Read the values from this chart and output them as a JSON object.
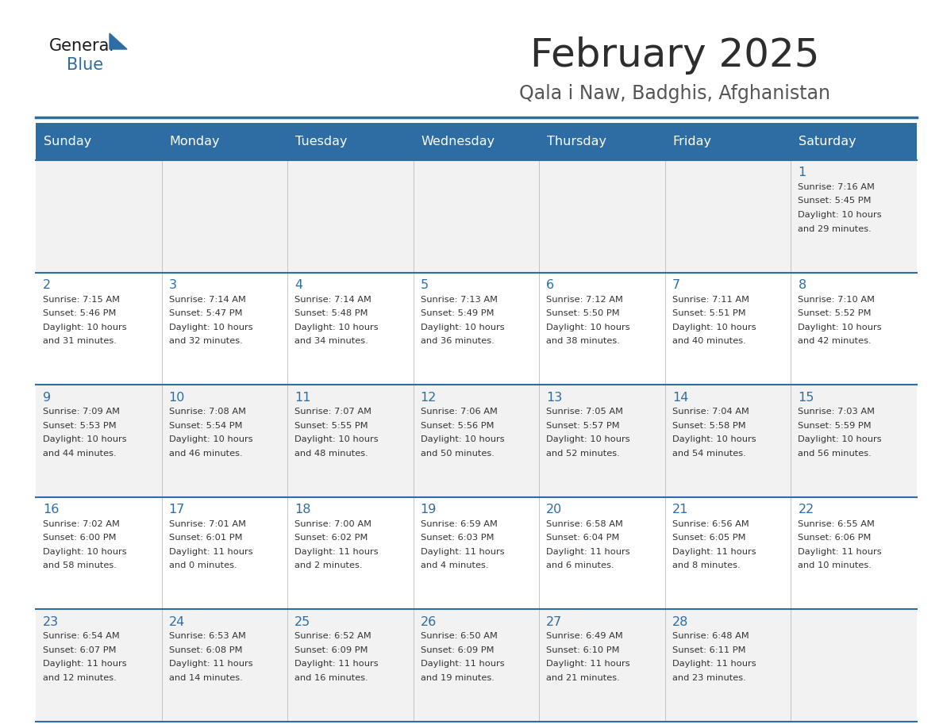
{
  "title": "February 2025",
  "subtitle": "Qala i Naw, Badghis, Afghanistan",
  "header_bg": "#2E6DA4",
  "header_text": "#FFFFFF",
  "row_bg_odd": "#F2F2F2",
  "row_bg_even": "#FFFFFF",
  "cell_border": "#2E6DA4",
  "day_headers": [
    "Sunday",
    "Monday",
    "Tuesday",
    "Wednesday",
    "Thursday",
    "Friday",
    "Saturday"
  ],
  "title_color": "#2d2d2d",
  "subtitle_color": "#555555",
  "day_num_color": "#2E6DA4",
  "info_color": "#333333",
  "logo_general_color": "#1a1a1a",
  "logo_blue_color": "#2E6DA4",
  "calendar": [
    [
      null,
      null,
      null,
      null,
      null,
      null,
      {
        "day": 1,
        "sunrise": "7:16 AM",
        "sunset": "5:45 PM",
        "daylight": "10 hours and 29 minutes."
      }
    ],
    [
      {
        "day": 2,
        "sunrise": "7:15 AM",
        "sunset": "5:46 PM",
        "daylight": "10 hours and 31 minutes."
      },
      {
        "day": 3,
        "sunrise": "7:14 AM",
        "sunset": "5:47 PM",
        "daylight": "10 hours and 32 minutes."
      },
      {
        "day": 4,
        "sunrise": "7:14 AM",
        "sunset": "5:48 PM",
        "daylight": "10 hours and 34 minutes."
      },
      {
        "day": 5,
        "sunrise": "7:13 AM",
        "sunset": "5:49 PM",
        "daylight": "10 hours and 36 minutes."
      },
      {
        "day": 6,
        "sunrise": "7:12 AM",
        "sunset": "5:50 PM",
        "daylight": "10 hours and 38 minutes."
      },
      {
        "day": 7,
        "sunrise": "7:11 AM",
        "sunset": "5:51 PM",
        "daylight": "10 hours and 40 minutes."
      },
      {
        "day": 8,
        "sunrise": "7:10 AM",
        "sunset": "5:52 PM",
        "daylight": "10 hours and 42 minutes."
      }
    ],
    [
      {
        "day": 9,
        "sunrise": "7:09 AM",
        "sunset": "5:53 PM",
        "daylight": "10 hours and 44 minutes."
      },
      {
        "day": 10,
        "sunrise": "7:08 AM",
        "sunset": "5:54 PM",
        "daylight": "10 hours and 46 minutes."
      },
      {
        "day": 11,
        "sunrise": "7:07 AM",
        "sunset": "5:55 PM",
        "daylight": "10 hours and 48 minutes."
      },
      {
        "day": 12,
        "sunrise": "7:06 AM",
        "sunset": "5:56 PM",
        "daylight": "10 hours and 50 minutes."
      },
      {
        "day": 13,
        "sunrise": "7:05 AM",
        "sunset": "5:57 PM",
        "daylight": "10 hours and 52 minutes."
      },
      {
        "day": 14,
        "sunrise": "7:04 AM",
        "sunset": "5:58 PM",
        "daylight": "10 hours and 54 minutes."
      },
      {
        "day": 15,
        "sunrise": "7:03 AM",
        "sunset": "5:59 PM",
        "daylight": "10 hours and 56 minutes."
      }
    ],
    [
      {
        "day": 16,
        "sunrise": "7:02 AM",
        "sunset": "6:00 PM",
        "daylight": "10 hours and 58 minutes."
      },
      {
        "day": 17,
        "sunrise": "7:01 AM",
        "sunset": "6:01 PM",
        "daylight": "11 hours and 0 minutes."
      },
      {
        "day": 18,
        "sunrise": "7:00 AM",
        "sunset": "6:02 PM",
        "daylight": "11 hours and 2 minutes."
      },
      {
        "day": 19,
        "sunrise": "6:59 AM",
        "sunset": "6:03 PM",
        "daylight": "11 hours and 4 minutes."
      },
      {
        "day": 20,
        "sunrise": "6:58 AM",
        "sunset": "6:04 PM",
        "daylight": "11 hours and 6 minutes."
      },
      {
        "day": 21,
        "sunrise": "6:56 AM",
        "sunset": "6:05 PM",
        "daylight": "11 hours and 8 minutes."
      },
      {
        "day": 22,
        "sunrise": "6:55 AM",
        "sunset": "6:06 PM",
        "daylight": "11 hours and 10 minutes."
      }
    ],
    [
      {
        "day": 23,
        "sunrise": "6:54 AM",
        "sunset": "6:07 PM",
        "daylight": "11 hours and 12 minutes."
      },
      {
        "day": 24,
        "sunrise": "6:53 AM",
        "sunset": "6:08 PM",
        "daylight": "11 hours and 14 minutes."
      },
      {
        "day": 25,
        "sunrise": "6:52 AM",
        "sunset": "6:09 PM",
        "daylight": "11 hours and 16 minutes."
      },
      {
        "day": 26,
        "sunrise": "6:50 AM",
        "sunset": "6:09 PM",
        "daylight": "11 hours and 19 minutes."
      },
      {
        "day": 27,
        "sunrise": "6:49 AM",
        "sunset": "6:10 PM",
        "daylight": "11 hours and 21 minutes."
      },
      {
        "day": 28,
        "sunrise": "6:48 AM",
        "sunset": "6:11 PM",
        "daylight": "11 hours and 23 minutes."
      },
      null
    ]
  ]
}
